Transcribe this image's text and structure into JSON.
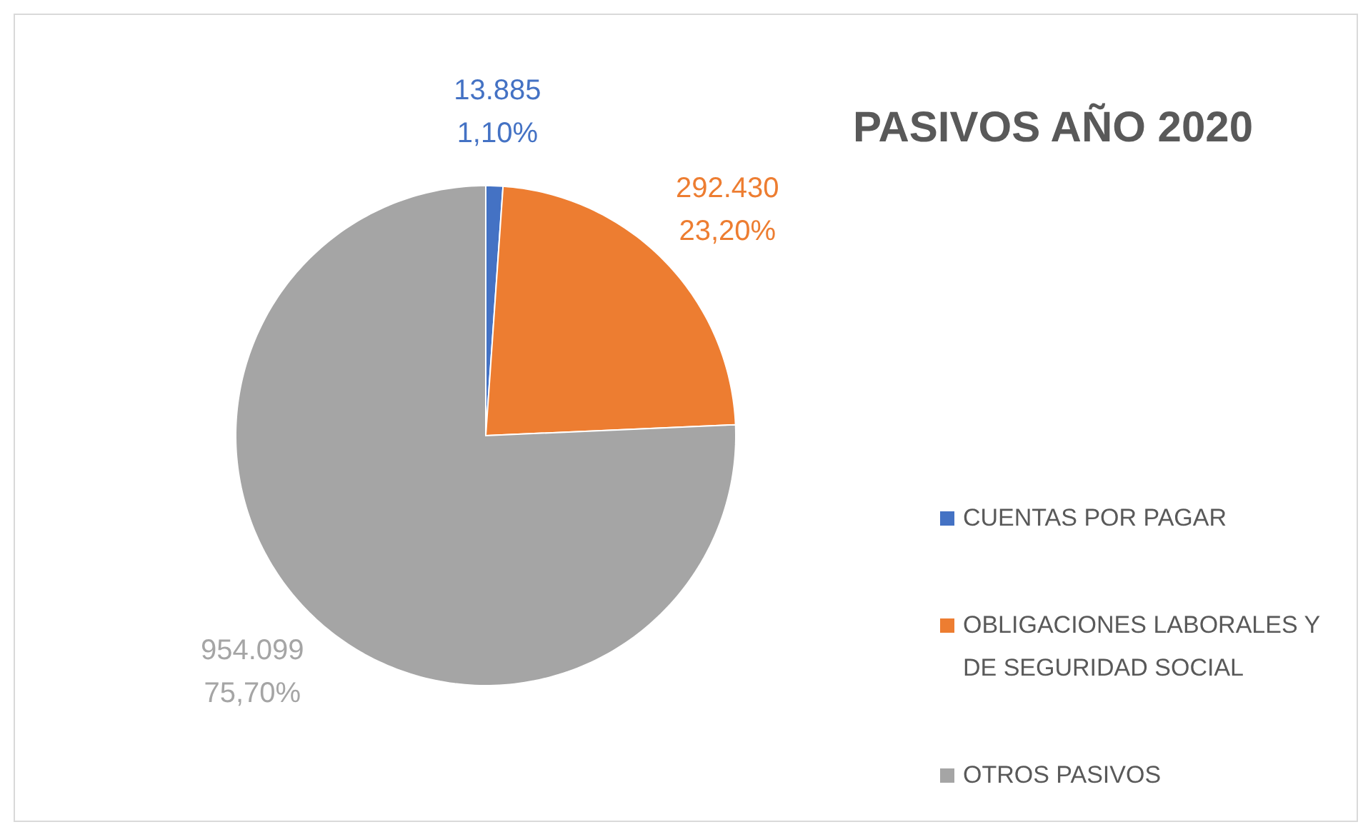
{
  "chart_data": {
    "type": "pie",
    "title": "PASIVOS AÑO 2020",
    "categories": [
      "CUENTAS POR PAGAR",
      "OBLIGACIONES LABORALES Y DE SEGURIDAD SOCIAL",
      "OTROS PASIVOS"
    ],
    "values": [
      13885,
      292430,
      954099
    ],
    "colors": [
      "#4472c4",
      "#ed7d31",
      "#a5a5a5"
    ],
    "value_labels": [
      "13.885\n1,10%",
      "292.430\n23,20%",
      "954.099\n75,70%"
    ],
    "legend": "right"
  }
}
